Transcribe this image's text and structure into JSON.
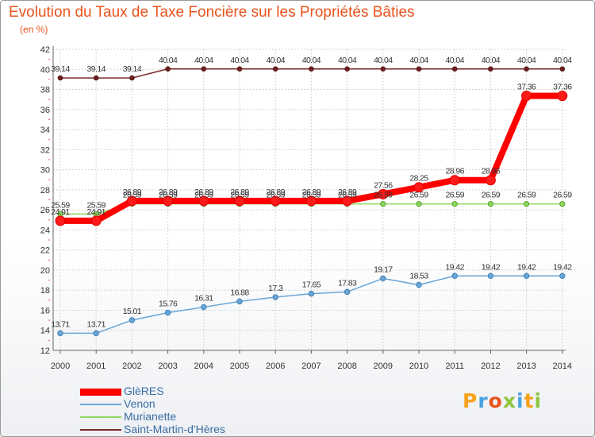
{
  "header": {
    "title": "Evolution du Taux de Taxe Foncière sur les Propriétés Bâties",
    "subtitle": "(en %)"
  },
  "logo": {
    "letters": [
      "P",
      "r",
      "o",
      "x",
      "i",
      "t",
      "i"
    ],
    "colors": [
      "#f7a21b",
      "#4aa3df",
      "#e8541d",
      "#8cc63f",
      "#4aa3df",
      "#f7a21b",
      "#8cc63f"
    ]
  },
  "chart_data": {
    "type": "line",
    "title": "Evolution du Taux de Taxe Foncière sur les Propriétés Bâties",
    "ylabel": "(en %)",
    "xlabel": "",
    "ylim": [
      12,
      42
    ],
    "yticks": [
      12,
      14,
      16,
      18,
      20,
      22,
      24,
      26,
      28,
      30,
      32,
      34,
      36,
      38,
      40,
      42
    ],
    "grid": true,
    "legend_position": "bottom-left",
    "x": [
      "2000",
      "2001",
      "2002",
      "2003",
      "2004",
      "2005",
      "2006",
      "2007",
      "2008",
      "2009",
      "2010",
      "2011",
      "2012",
      "2013",
      "2014"
    ],
    "series": [
      {
        "name": "Saint-Martin-d'Hères",
        "color": "#7a2a2a",
        "values": [
          39.14,
          39.14,
          39.14,
          40.04,
          40.04,
          40.04,
          40.04,
          40.04,
          40.04,
          40.04,
          40.04,
          40.04,
          40.04,
          40.04,
          40.04
        ],
        "labels": [
          "39.14",
          "39.14",
          "39.14",
          "40.04",
          "40.04",
          "40.04",
          "40.04",
          "40.04",
          "40.04",
          "40.04",
          "40.04",
          "40.04",
          "40.04",
          "40.04",
          "40.04"
        ]
      },
      {
        "name": "Murianette",
        "color": "#8cd65a",
        "values": [
          25.59,
          25.59,
          26.59,
          26.59,
          26.59,
          26.59,
          26.59,
          26.59,
          26.59,
          26.59,
          26.59,
          26.59,
          26.59,
          26.59,
          26.59
        ],
        "labels": [
          "25.59",
          "25.59",
          "26.59",
          "26.59",
          "26.59",
          "26.59",
          "26.59",
          "26.59",
          "26.59",
          "26.59",
          "26.59",
          "26.59",
          "26.59",
          "26.59",
          "26.59"
        ]
      },
      {
        "name": "GlèRES",
        "color": "#ff0000",
        "values": [
          24.91,
          24.91,
          26.89,
          26.89,
          26.89,
          26.89,
          26.89,
          26.89,
          26.89,
          27.56,
          28.25,
          28.96,
          28.96,
          37.36,
          37.36
        ],
        "labels": [
          "24.91",
          "24.91",
          "26.89",
          "26.89",
          "26.89",
          "26.89",
          "26.89",
          "26.89",
          "26.89",
          "27.56",
          "28.25",
          "28.96",
          "28.96",
          "37.36",
          "37.36"
        ]
      },
      {
        "name": "Venon",
        "color": "#6aa6d6",
        "values": [
          13.71,
          13.71,
          15.01,
          15.76,
          16.31,
          16.88,
          17.3,
          17.65,
          17.83,
          19.17,
          18.53,
          19.42,
          19.42,
          19.42,
          19.42
        ],
        "labels": [
          "13.71",
          "13.71",
          "15.01",
          "15.76",
          "16.31",
          "16.88",
          "17.3",
          "17.65",
          "17.83",
          "19.17",
          "18.53",
          "19.42",
          "19.42",
          "19.42",
          "19.42"
        ]
      }
    ],
    "legend_order": [
      "GlèRES",
      "Venon",
      "Murianette",
      "Saint-Martin-d'Hères"
    ]
  }
}
